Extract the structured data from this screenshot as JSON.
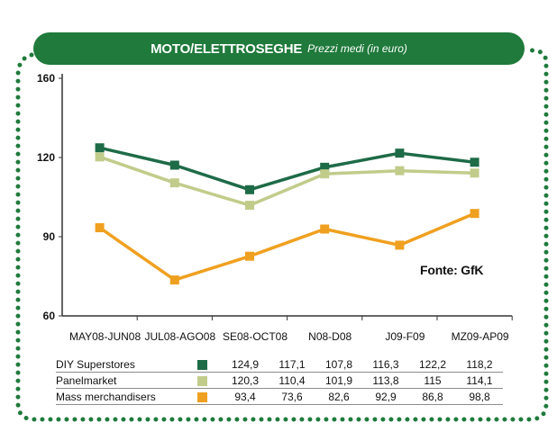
{
  "header": {
    "title": "MOTO/ELETTROSEGHE",
    "subtitle": "Prezzi medi (in euro)"
  },
  "source_label": "Fonte: GfK",
  "colors": {
    "frame": "#1f7a3b",
    "diy": "#1e6b47",
    "panel": "#c1cc8b",
    "mass": "#f0a020"
  },
  "chart_data": {
    "type": "line",
    "categories": [
      "MAY08-JUN08",
      "JUL08-AGO08",
      "SE08-OCT08",
      "N08-D08",
      "J09-F09",
      "MZ09-AP09"
    ],
    "ylim": [
      60,
      160
    ],
    "yticks": [
      "60",
      "90",
      "120",
      "160"
    ],
    "series": [
      {
        "name": "DIY Superstores",
        "values": [
          124.9,
          117.1,
          107.8,
          116.3,
          122.2,
          118.2
        ],
        "color": "#1e6b47"
      },
      {
        "name": "Panelmarket",
        "values": [
          120.3,
          110.4,
          101.9,
          113.8,
          115,
          114.1
        ],
        "color": "#c1cc8b"
      },
      {
        "name": "Mass merchandisers",
        "values": [
          93.4,
          73.6,
          82.6,
          92.9,
          86.8,
          98.8
        ],
        "color": "#f0a020"
      }
    ]
  },
  "table": {
    "rows": [
      {
        "label": "DIY Superstores",
        "values": [
          "124,9",
          "117,1",
          "107,8",
          "116,3",
          "122,2",
          "118,2"
        ]
      },
      {
        "label": "Panelmarket",
        "values": [
          "120,3",
          "110,4",
          "101,9",
          "113,8",
          "115",
          "114,1"
        ]
      },
      {
        "label": "Mass merchandisers",
        "values": [
          "93,4",
          "73,6",
          "82,6",
          "92,9",
          "86,8",
          "98,8"
        ]
      }
    ]
  }
}
